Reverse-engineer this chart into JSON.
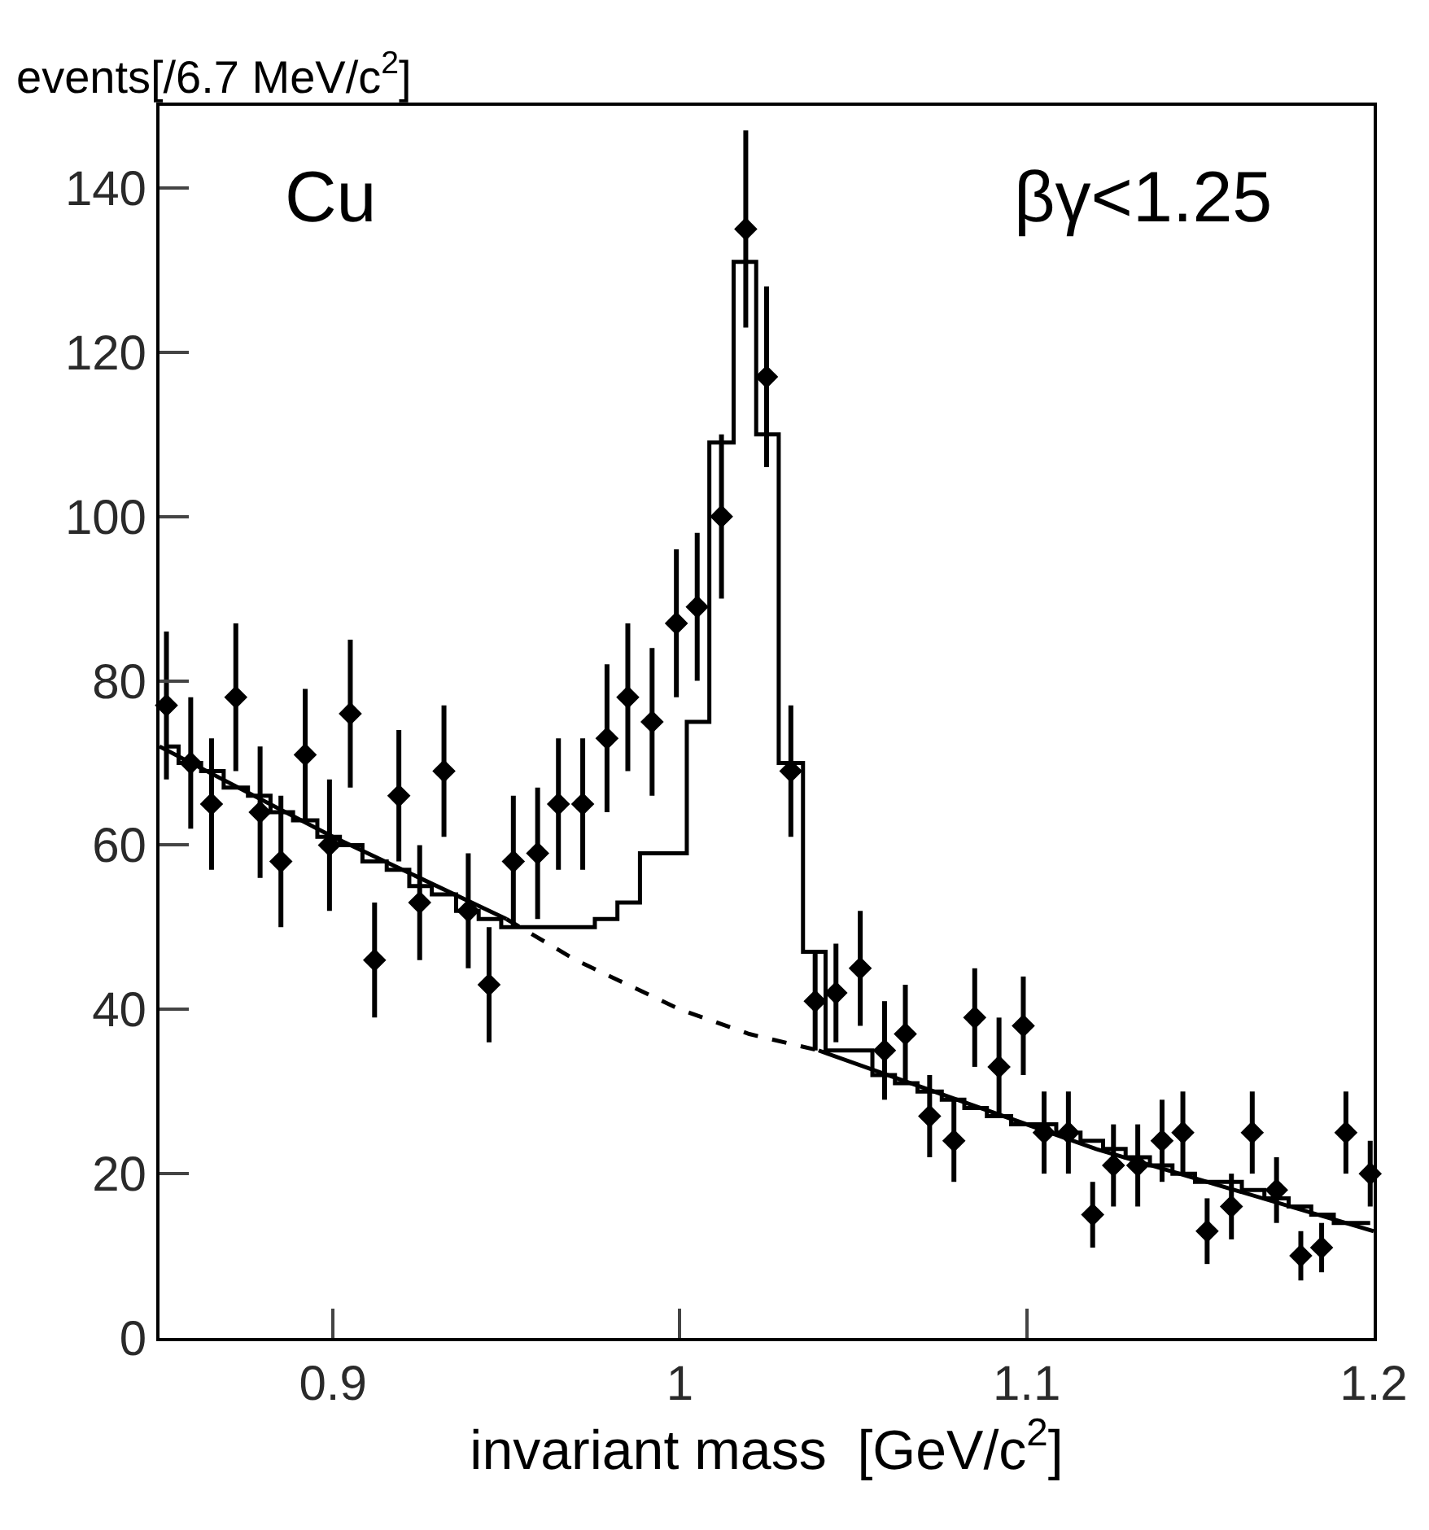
{
  "chart_data": {
    "type": "scatter",
    "ylabel": "events[/6.7 MeV/c$^{2}$]",
    "xlabel": "invariant mass  [GeV/c$^{2}$]",
    "annotations": [
      "Cu",
      "βγ<1.25"
    ],
    "xlim": [
      0.85,
      1.2
    ],
    "xticks": [
      0.9,
      1,
      1.1,
      1.2
    ],
    "ylim": [
      0,
      150
    ],
    "yticks": [
      0,
      20,
      40,
      60,
      80,
      100,
      120,
      140
    ],
    "legend": false,
    "series": [
      {
        "type": "step",
        "marker": "none",
        "color": "#000000",
        "line_style": "solid",
        "x": [
          0.852,
          0.859,
          0.865,
          0.872,
          0.879,
          0.885,
          0.892,
          0.899,
          0.905,
          0.912,
          0.919,
          0.925,
          0.932,
          0.939,
          0.945,
          0.952,
          0.959,
          0.965,
          0.972,
          0.979,
          0.985,
          0.992,
          0.999,
          1.005,
          1.012,
          1.019,
          1.025,
          1.032,
          1.039,
          1.045,
          1.052,
          1.059,
          1.065,
          1.072,
          1.079,
          1.085,
          1.092,
          1.099,
          1.105,
          1.112,
          1.119,
          1.125,
          1.132,
          1.139,
          1.145,
          1.152,
          1.159,
          1.165,
          1.172,
          1.179,
          1.185,
          1.192,
          1.199
        ],
        "values": [
          72,
          70,
          69,
          67,
          66,
          64,
          63,
          61,
          60,
          58,
          57,
          55,
          54,
          52,
          51,
          50,
          50,
          50,
          50,
          51,
          53,
          59,
          59,
          75,
          109,
          131,
          110,
          70,
          47,
          35,
          35,
          32,
          31,
          30,
          29,
          28,
          27,
          26,
          26,
          25,
          24,
          23,
          22,
          21,
          20,
          19,
          19,
          18,
          17,
          16,
          15,
          14,
          14
        ]
      },
      {
        "type": "line",
        "marker": "none",
        "color": "#000000",
        "line_style": "solid",
        "x": [
          0.85,
          0.9,
          0.95
        ],
        "values": [
          72,
          61,
          51
        ]
      },
      {
        "type": "line",
        "marker": "none",
        "color": "#000000",
        "line_style": "dashed",
        "x": [
          0.95,
          0.97,
          1.0,
          1.02,
          1.04
        ],
        "values": [
          51,
          46,
          40,
          37,
          35
        ]
      },
      {
        "type": "line",
        "marker": "none",
        "color": "#000000",
        "line_style": "solid",
        "x": [
          1.04,
          1.08,
          1.12,
          1.16,
          1.2
        ],
        "values": [
          35,
          29,
          23,
          18,
          13
        ]
      },
      {
        "marker": "diamond",
        "color": "#000000",
        "x": [
          0.852,
          0.859,
          0.865,
          0.872,
          0.879,
          0.885,
          0.892,
          0.899,
          0.905,
          0.912,
          0.919,
          0.925,
          0.932,
          0.939,
          0.945,
          0.952,
          0.959,
          0.965,
          0.972,
          0.979,
          0.985,
          0.992,
          0.999,
          1.005,
          1.012,
          1.019,
          1.025,
          1.032,
          1.039,
          1.045,
          1.052,
          1.059,
          1.065,
          1.072,
          1.079,
          1.085,
          1.092,
          1.099,
          1.105,
          1.112,
          1.119,
          1.125,
          1.132,
          1.139,
          1.145,
          1.152,
          1.159,
          1.165,
          1.172,
          1.179,
          1.185,
          1.192,
          1.199
        ],
        "values": [
          77,
          70,
          65,
          78,
          64,
          58,
          71,
          60,
          76,
          46,
          66,
          53,
          69,
          52,
          43,
          58,
          59,
          65,
          65,
          73,
          78,
          75,
          87,
          89,
          100,
          135,
          117,
          69,
          41,
          42,
          45,
          35,
          37,
          27,
          24,
          39,
          33,
          38,
          25,
          25,
          15,
          21,
          21,
          24,
          25,
          13,
          16,
          25,
          18,
          10,
          11,
          25,
          20
        ],
        "errors": [
          9,
          8,
          8,
          9,
          8,
          8,
          8,
          8,
          9,
          7,
          8,
          7,
          8,
          7,
          7,
          8,
          8,
          8,
          8,
          9,
          9,
          9,
          9,
          9,
          10,
          12,
          11,
          8,
          6,
          6,
          7,
          6,
          6,
          5,
          5,
          6,
          6,
          6,
          5,
          5,
          4,
          5,
          5,
          5,
          5,
          4,
          4,
          5,
          4,
          3,
          3,
          5,
          4
        ]
      }
    ]
  }
}
